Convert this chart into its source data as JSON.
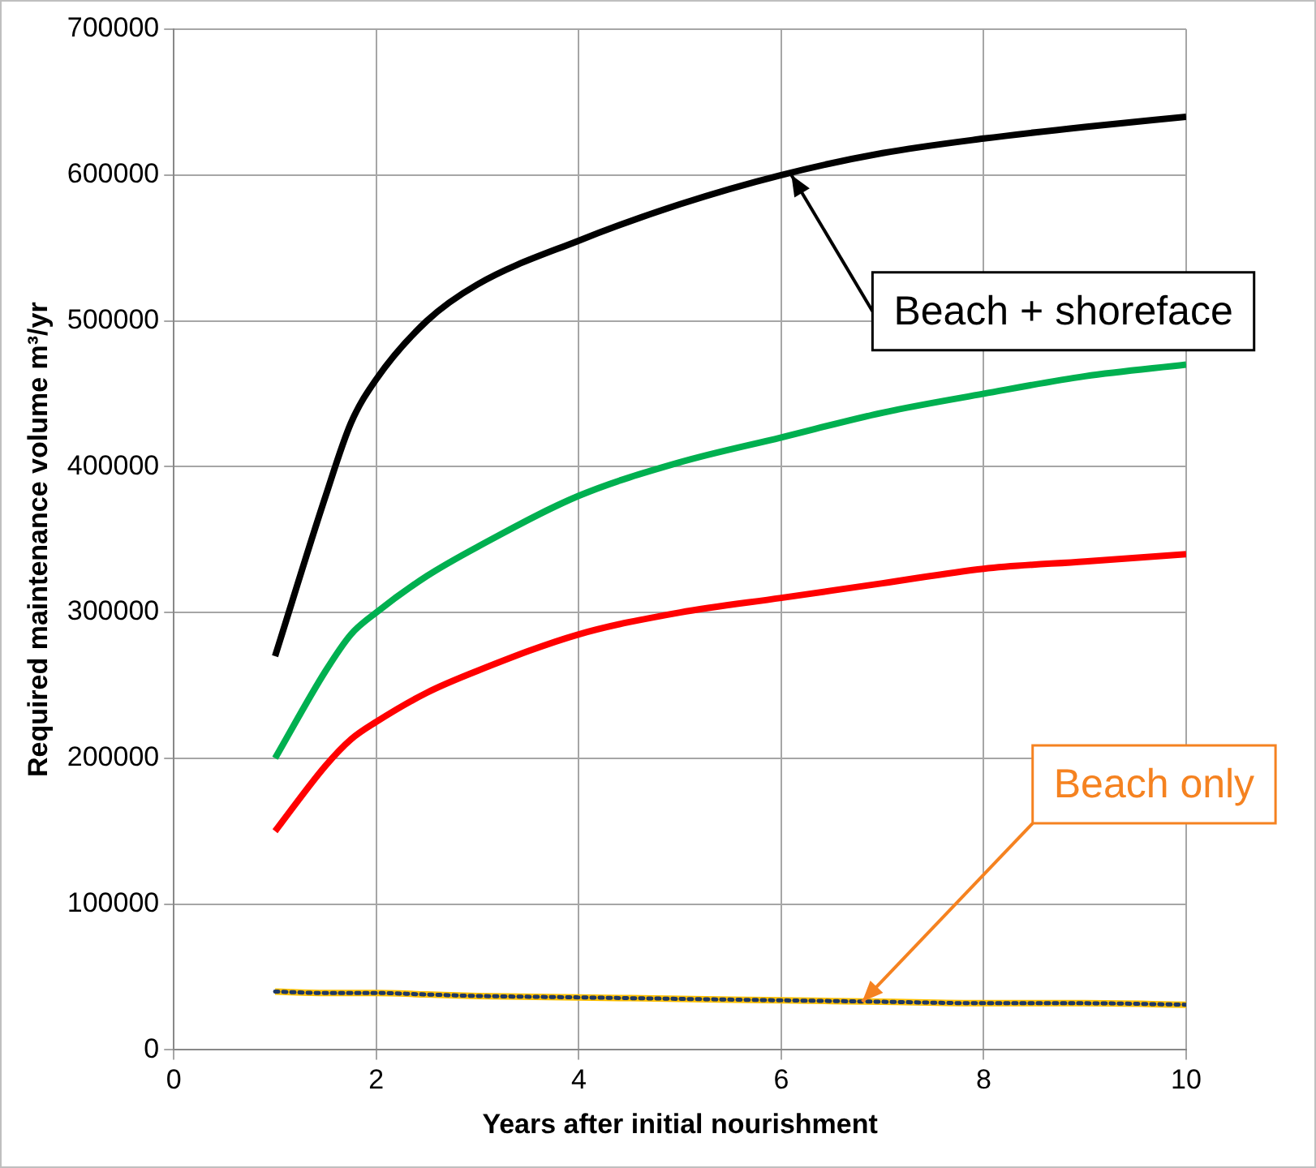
{
  "chart_data": {
    "type": "line",
    "xlabel": "Years after initial nourishment",
    "ylabel": "Required maintenance volume m³/yr",
    "xlim": [
      0,
      10
    ],
    "xticks": [
      0,
      2,
      4,
      6,
      8,
      10
    ],
    "ylim": [
      0,
      700000
    ],
    "yticks": [
      0,
      100000,
      200000,
      300000,
      400000,
      500000,
      600000,
      700000
    ],
    "grid": true,
    "legend": false,
    "marker": "none",
    "x": [
      1,
      1.5,
      1.75,
      2,
      2.5,
      3,
      4,
      5,
      6,
      7,
      8,
      9,
      10
    ],
    "series": [
      {
        "color": "#000000",
        "values": [
          270000,
          380000,
          430000,
          460000,
          500000,
          525000,
          555000,
          580000,
          600000,
          615000,
          625000,
          633000,
          640000
        ]
      },
      {
        "color": "#00b050",
        "values": [
          200000,
          260000,
          285000,
          300000,
          325000,
          345000,
          380000,
          403000,
          420000,
          437000,
          450000,
          462000,
          470000
        ]
      },
      {
        "color": "#ff0000",
        "values": [
          150000,
          195000,
          213000,
          225000,
          245000,
          260000,
          285000,
          300000,
          310000,
          320000,
          330000,
          335000,
          340000
        ]
      },
      {
        "color": "#ffc000",
        "line_style": "solid",
        "values": [
          40000,
          39000,
          39000,
          39000,
          38000,
          37000,
          36000,
          35000,
          34000,
          33000,
          32000,
          32000,
          31000
        ]
      },
      {
        "color": "#1f3864",
        "line_style": "dotted",
        "values": [
          40000,
          39000,
          39000,
          39000,
          38000,
          37000,
          36000,
          35000,
          34000,
          33000,
          32000,
          32000,
          31000
        ]
      }
    ],
    "annotations": [
      {
        "text": "Beach + shoreface",
        "x": 6.1,
        "y": 600000
      },
      {
        "text": "Beach only",
        "x": 6.8,
        "y": 33000
      }
    ]
  }
}
